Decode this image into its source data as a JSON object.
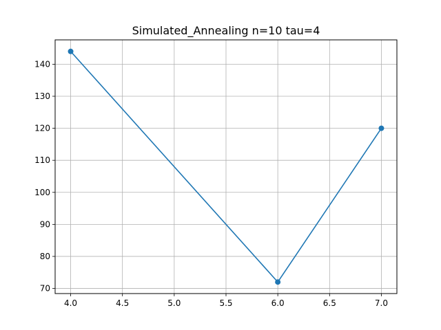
{
  "chart_data": {
    "type": "line",
    "title": "Simulated_Annealing n=10 tau=4",
    "xlabel": "",
    "ylabel": "",
    "x": [
      4.0,
      6.0,
      7.0
    ],
    "series": [
      {
        "values": [
          144,
          72,
          120
        ],
        "color": "#1f77b4",
        "marker": "circle"
      }
    ],
    "xlim": [
      3.85,
      7.15
    ],
    "ylim": [
      68.4,
      147.6
    ],
    "xticks": [
      4.0,
      4.5,
      5.0,
      5.5,
      6.0,
      6.5,
      7.0
    ],
    "xtick_labels": [
      "4.0",
      "4.5",
      "5.0",
      "5.5",
      "6.0",
      "6.5",
      "7.0"
    ],
    "yticks": [
      70,
      80,
      90,
      100,
      110,
      120,
      130,
      140
    ],
    "ytick_labels": [
      "70",
      "80",
      "90",
      "100",
      "110",
      "120",
      "130",
      "140"
    ],
    "grid": true,
    "grid_color": "#b0b0b0"
  }
}
